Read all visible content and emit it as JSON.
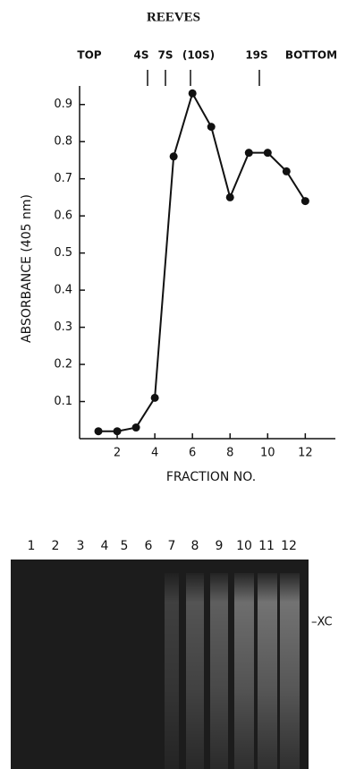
{
  "chart_data": {
    "type": "line",
    "title": "REEVES",
    "xlabel": "FRACTION NO.",
    "ylabel": "ABSORBANCE (405 nm)",
    "x": [
      1,
      2,
      3,
      4,
      5,
      6,
      7,
      8,
      9,
      10,
      11,
      12
    ],
    "values": [
      0.02,
      0.02,
      0.03,
      0.11,
      0.76,
      0.93,
      0.84,
      0.65,
      0.77,
      0.77,
      0.72,
      0.64
    ],
    "color": "#111111",
    "xlim": [
      0,
      13.6
    ],
    "ylim": [
      0,
      0.95
    ],
    "xticks": [
      2,
      4,
      6,
      8,
      10,
      12
    ],
    "yticks": [
      0.1,
      0.2,
      0.3,
      0.4,
      0.5,
      0.6,
      0.7,
      0.8,
      0.9
    ],
    "annotations": [
      "TOP",
      "4S",
      "7S",
      "(10S)",
      "19S",
      "BOTTOM"
    ]
  },
  "gel": {
    "lanes": [
      "1",
      "2",
      "3",
      "4",
      "5",
      "6",
      "7",
      "8",
      "9",
      "10",
      "11",
      "12"
    ],
    "marker": "–XC"
  }
}
